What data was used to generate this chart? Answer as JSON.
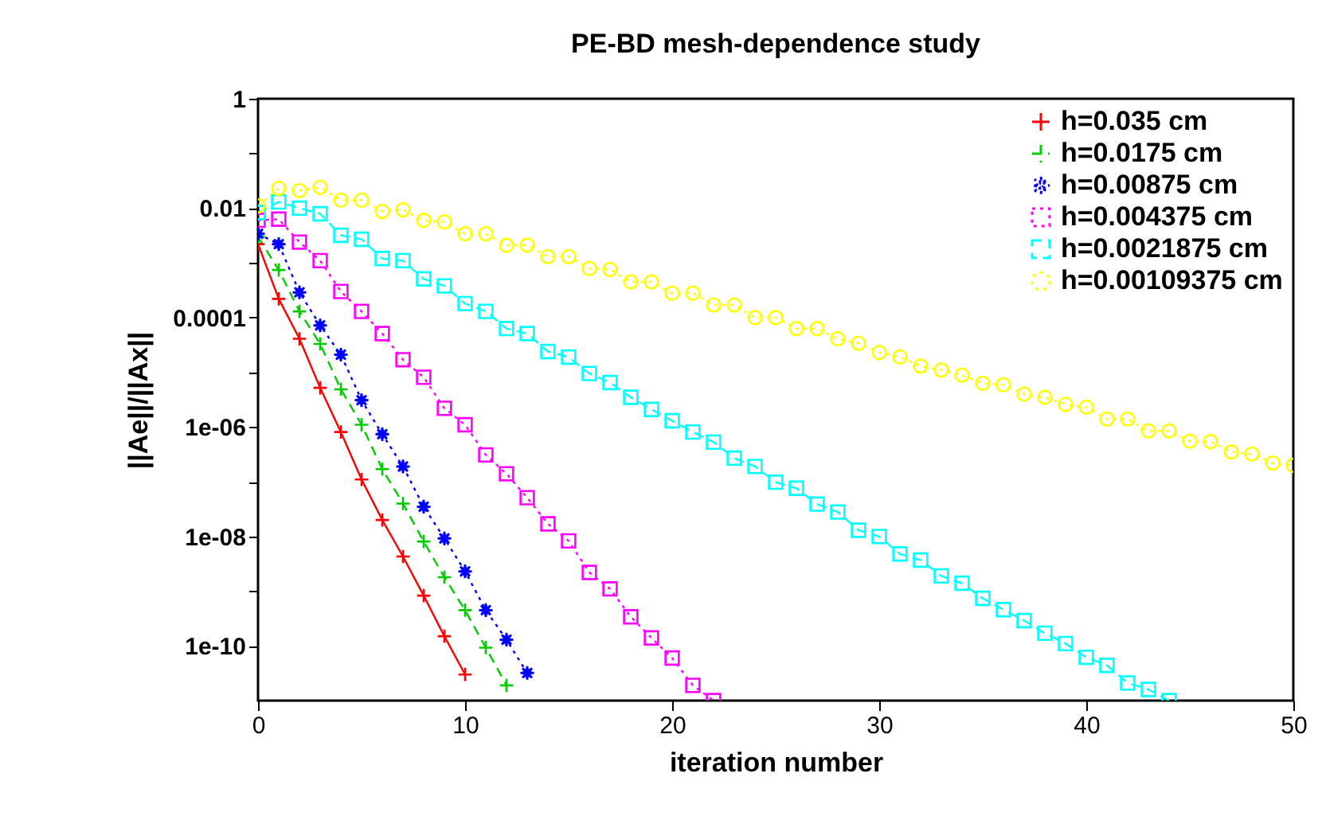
{
  "chart_data": {
    "type": "line",
    "title": "PE-BD mesh-dependence study",
    "xlabel": "iteration number",
    "ylabel": "||Ae||/||Ax||",
    "x": [
      0,
      1,
      2,
      3,
      4,
      5,
      6,
      7,
      8,
      9,
      10,
      11,
      12,
      13,
      14,
      15,
      16,
      17,
      18,
      19,
      20,
      21,
      22,
      23,
      24,
      25,
      26,
      27,
      28,
      29,
      30,
      31,
      32,
      33,
      34,
      35,
      36,
      37,
      38,
      39,
      40,
      41,
      42,
      43,
      44,
      45,
      46,
      47,
      48,
      49,
      50
    ],
    "series": [
      {
        "name": "h=0.035 cm",
        "x": [
          0,
          1,
          2,
          3,
          4,
          5,
          6,
          7,
          8,
          9,
          10
        ],
        "color": "#ff0000",
        "marker": "cross",
        "line_style": "solid",
        "values": [
          0.0022,
          0.00022,
          4.1e-05,
          5.2e-06,
          8.1e-07,
          1.1e-07,
          2e-08,
          4.3e-09,
          8.3e-10,
          1.5e-10,
          3e-11
        ]
      },
      {
        "name": "h=0.0175 cm",
        "x": [
          0,
          1,
          2,
          3,
          4,
          5,
          6,
          7,
          8,
          9,
          10,
          11,
          12
        ],
        "color": "#00cc00",
        "marker": "cross",
        "line_style": "dashed",
        "values": [
          0.003,
          0.00074,
          0.00013,
          3.3e-05,
          4.9e-06,
          1.1e-06,
          1.7e-07,
          4e-08,
          8.1e-09,
          1.8e-09,
          4.5e-10,
          9.3e-11,
          1.9e-11
        ]
      },
      {
        "name": "h=0.00875 cm",
        "x": [
          0,
          1,
          2,
          3,
          4,
          5,
          6,
          7,
          8,
          9,
          10,
          11,
          12,
          13
        ],
        "color": "#0000ff",
        "marker": "star",
        "line_style": "dotted",
        "values": [
          0.0034,
          0.0022,
          0.00029,
          7.2e-05,
          2.1e-05,
          3.1e-06,
          7.4e-07,
          1.9e-07,
          3.5e-08,
          9.2e-09,
          2.3e-09,
          4.5e-10,
          1.3e-10,
          3.2e-11
        ]
      },
      {
        "name": "h=0.004375 cm",
        "x": [
          0,
          1,
          2,
          3,
          4,
          5,
          6,
          7,
          8,
          9,
          10,
          11,
          12,
          13,
          14,
          15,
          16,
          17,
          18,
          19,
          20,
          21,
          22
        ],
        "color": "#ff00ff",
        "marker": "square",
        "line_style": "dotted",
        "values": [
          0.006,
          0.0063,
          0.0024,
          0.0011,
          0.0003,
          0.00013,
          5.1e-05,
          1.7e-05,
          8.1e-06,
          2.2e-06,
          1.1e-06,
          3.1e-07,
          1.4e-07,
          5.1e-08,
          1.7e-08,
          8.3e-09,
          2.2e-09,
          1.1e-09,
          3.4e-10,
          1.4e-10,
          6e-11,
          1.9e-11,
          1e-11
        ]
      },
      {
        "name": "h=0.0021875 cm",
        "x": [
          0,
          1,
          2,
          3,
          4,
          5,
          6,
          7,
          8,
          9,
          10,
          11,
          12,
          13,
          14,
          15,
          16,
          17,
          18,
          19,
          20,
          21,
          22,
          23,
          24,
          25,
          26,
          27,
          28,
          29,
          30,
          31,
          32,
          33,
          34,
          35,
          36,
          37,
          38,
          39,
          40,
          41,
          42,
          43,
          44
        ],
        "color": "#00ffff",
        "marker": "square",
        "line_style": "dashed",
        "values": [
          0.0083,
          0.013,
          0.01,
          0.0079,
          0.0032,
          0.0027,
          0.0012,
          0.0011,
          0.00051,
          0.00038,
          0.00018,
          0.00013,
          6.3e-05,
          5.1e-05,
          2.4e-05,
          1.9e-05,
          9.5e-06,
          6.5e-06,
          3.5e-06,
          2.1e-06,
          1.3e-06,
          8.1e-07,
          5.3e-07,
          2.7e-07,
          1.9e-07,
          9.8e-08,
          7.6e-08,
          3.9e-08,
          2.8e-08,
          1.3e-08,
          1e-08,
          4.8e-09,
          3.7e-09,
          1.9e-09,
          1.4e-09,
          7.4e-10,
          4.6e-10,
          2.9e-10,
          1.7e-10,
          1.1e-10,
          6.2e-11,
          4.4e-11,
          2.1e-11,
          1.6e-11,
          1e-11
        ]
      },
      {
        "name": "h=0.00109375 cm",
        "color": "#ffff00",
        "marker": "circle",
        "line_style": "dotted",
        "values": [
          0.011,
          0.023,
          0.021,
          0.024,
          0.014,
          0.014,
          0.0087,
          0.0093,
          0.006,
          0.0056,
          0.0034,
          0.0034,
          0.0021,
          0.0021,
          0.0013,
          0.0013,
          0.00079,
          0.00076,
          0.00045,
          0.00045,
          0.00028,
          0.00028,
          0.00017,
          0.00017,
          0.0001,
          0.0001,
          6.3e-05,
          6.3e-05,
          4.1e-05,
          3.4e-05,
          2.3e-05,
          1.9e-05,
          1.3e-05,
          1.1e-05,
          8.9e-06,
          6.3e-06,
          5.9e-06,
          4e-06,
          3.5e-06,
          2.6e-06,
          2.3e-06,
          1.4e-06,
          1.4e-06,
          8.5e-07,
          8.5e-07,
          5.5e-07,
          5.4e-07,
          3.5e-07,
          3.2e-07,
          2.2e-07,
          2e-07
        ]
      }
    ],
    "log": "y",
    "grid": false,
    "legend": "top right",
    "xlim": [
      0,
      50
    ],
    "xticks": [
      0,
      10,
      20,
      30,
      40,
      50
    ],
    "ylim": [
      1e-11,
      1
    ],
    "yticks": [
      1,
      {
        "value": 0.1,
        "label": null
      },
      0.01,
      {
        "value": 0.001,
        "label": null
      },
      0.0001,
      {
        "value": 1e-05,
        "label": null
      },
      {
        "value": 1e-06,
        "label": "1e-06"
      },
      {
        "value": 1e-07,
        "label": null
      },
      {
        "value": 1e-08,
        "label": "1e-08"
      },
      {
        "value": 1e-09,
        "label": null
      },
      {
        "value": 1e-10,
        "label": "1e-10"
      }
    ]
  }
}
